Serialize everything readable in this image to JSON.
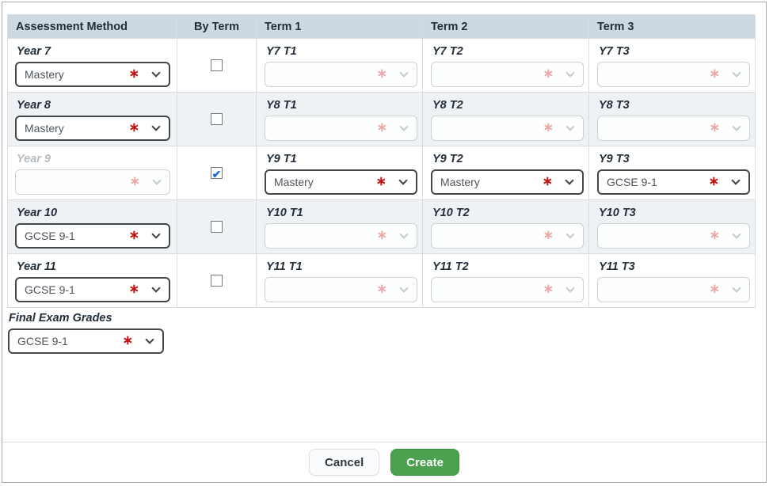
{
  "header": {
    "columns": [
      "Assessment Method",
      "By Term",
      "Term 1",
      "Term 2",
      "Term 3"
    ]
  },
  "rows": [
    {
      "year_label": "Year 7",
      "year_value": "Mastery",
      "year_disabled": false,
      "by_term_checked": false,
      "terms": [
        {
          "label": "Y7 T1",
          "value": "",
          "disabled": true
        },
        {
          "label": "Y7 T2",
          "value": "",
          "disabled": true
        },
        {
          "label": "Y7 T3",
          "value": "",
          "disabled": true
        }
      ]
    },
    {
      "year_label": "Year 8",
      "year_value": "Mastery",
      "year_disabled": false,
      "by_term_checked": false,
      "terms": [
        {
          "label": "Y8 T1",
          "value": "",
          "disabled": true
        },
        {
          "label": "Y8 T2",
          "value": "",
          "disabled": true
        },
        {
          "label": "Y8 T3",
          "value": "",
          "disabled": true
        }
      ]
    },
    {
      "year_label": "Year 9",
      "year_value": "",
      "year_disabled": true,
      "by_term_checked": true,
      "terms": [
        {
          "label": "Y9 T1",
          "value": "Mastery",
          "disabled": false
        },
        {
          "label": "Y9 T2",
          "value": "Mastery",
          "disabled": false
        },
        {
          "label": "Y9 T3",
          "value": "GCSE 9-1",
          "disabled": false
        }
      ]
    },
    {
      "year_label": "Year 10",
      "year_value": "GCSE 9-1",
      "year_disabled": false,
      "by_term_checked": false,
      "terms": [
        {
          "label": "Y10 T1",
          "value": "",
          "disabled": true
        },
        {
          "label": "Y10 T2",
          "value": "",
          "disabled": true
        },
        {
          "label": "Y10 T3",
          "value": "",
          "disabled": true
        }
      ]
    },
    {
      "year_label": "Year 11",
      "year_value": "GCSE 9-1",
      "year_disabled": false,
      "by_term_checked": false,
      "terms": [
        {
          "label": "Y11 T1",
          "value": "",
          "disabled": true
        },
        {
          "label": "Y11 T2",
          "value": "",
          "disabled": true
        },
        {
          "label": "Y11 T3",
          "value": "",
          "disabled": true
        }
      ]
    }
  ],
  "final_exam": {
    "label": "Final Exam Grades",
    "value": "GCSE 9-1"
  },
  "buttons": {
    "cancel": "Cancel",
    "create": "Create"
  },
  "icons": {
    "required_asterisk": "∗",
    "checkmark": "✔"
  },
  "colors": {
    "header_bg": "#ccd9e2",
    "row_alt_bg": "#eef2f5",
    "create_green": "#4ba14f",
    "asterisk_red": "#bf1414",
    "checkbox_blue": "#1b6ad6",
    "outer_border": "#a5a9ad"
  }
}
